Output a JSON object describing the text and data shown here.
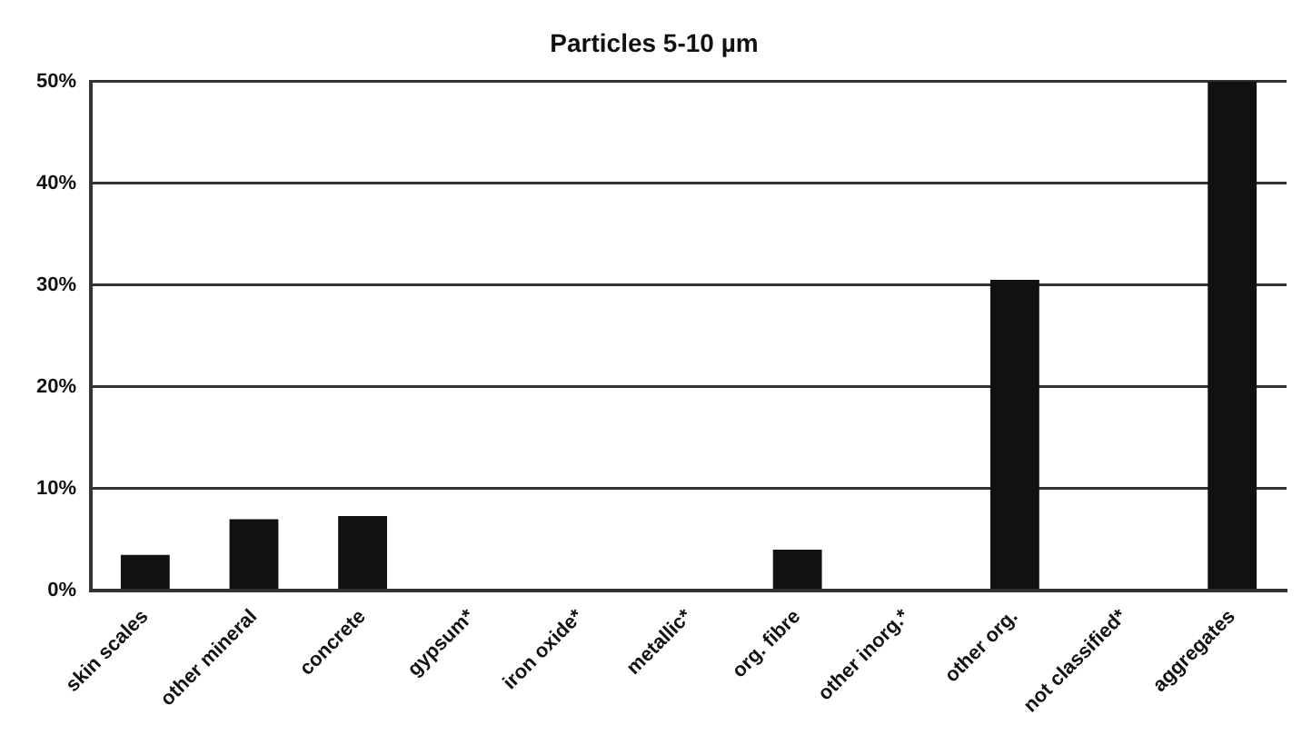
{
  "chart_data": {
    "type": "bar",
    "title": "Particles 5-10 µm",
    "categories": [
      "skin scales",
      "other mineral",
      "concrete",
      "gypsum*",
      "iron oxide*",
      "metallic*",
      "org. fibre",
      "other inorg.*",
      "other org.",
      "not classified*",
      "aggregates"
    ],
    "values": [
      3.5,
      7,
      7.3,
      0,
      0,
      0,
      4,
      0,
      30.5,
      0,
      50
    ],
    "color": "#111111",
    "ylim": [
      0,
      50
    ],
    "yticks": [
      {
        "value": 0,
        "label": "0%"
      },
      {
        "value": 10,
        "label": "10%"
      },
      {
        "value": 20,
        "label": "20%"
      },
      {
        "value": 30,
        "label": "30%"
      },
      {
        "value": 40,
        "label": "40%"
      },
      {
        "value": 50,
        "label": "50%"
      }
    ],
    "grid": "y",
    "legend": false
  }
}
